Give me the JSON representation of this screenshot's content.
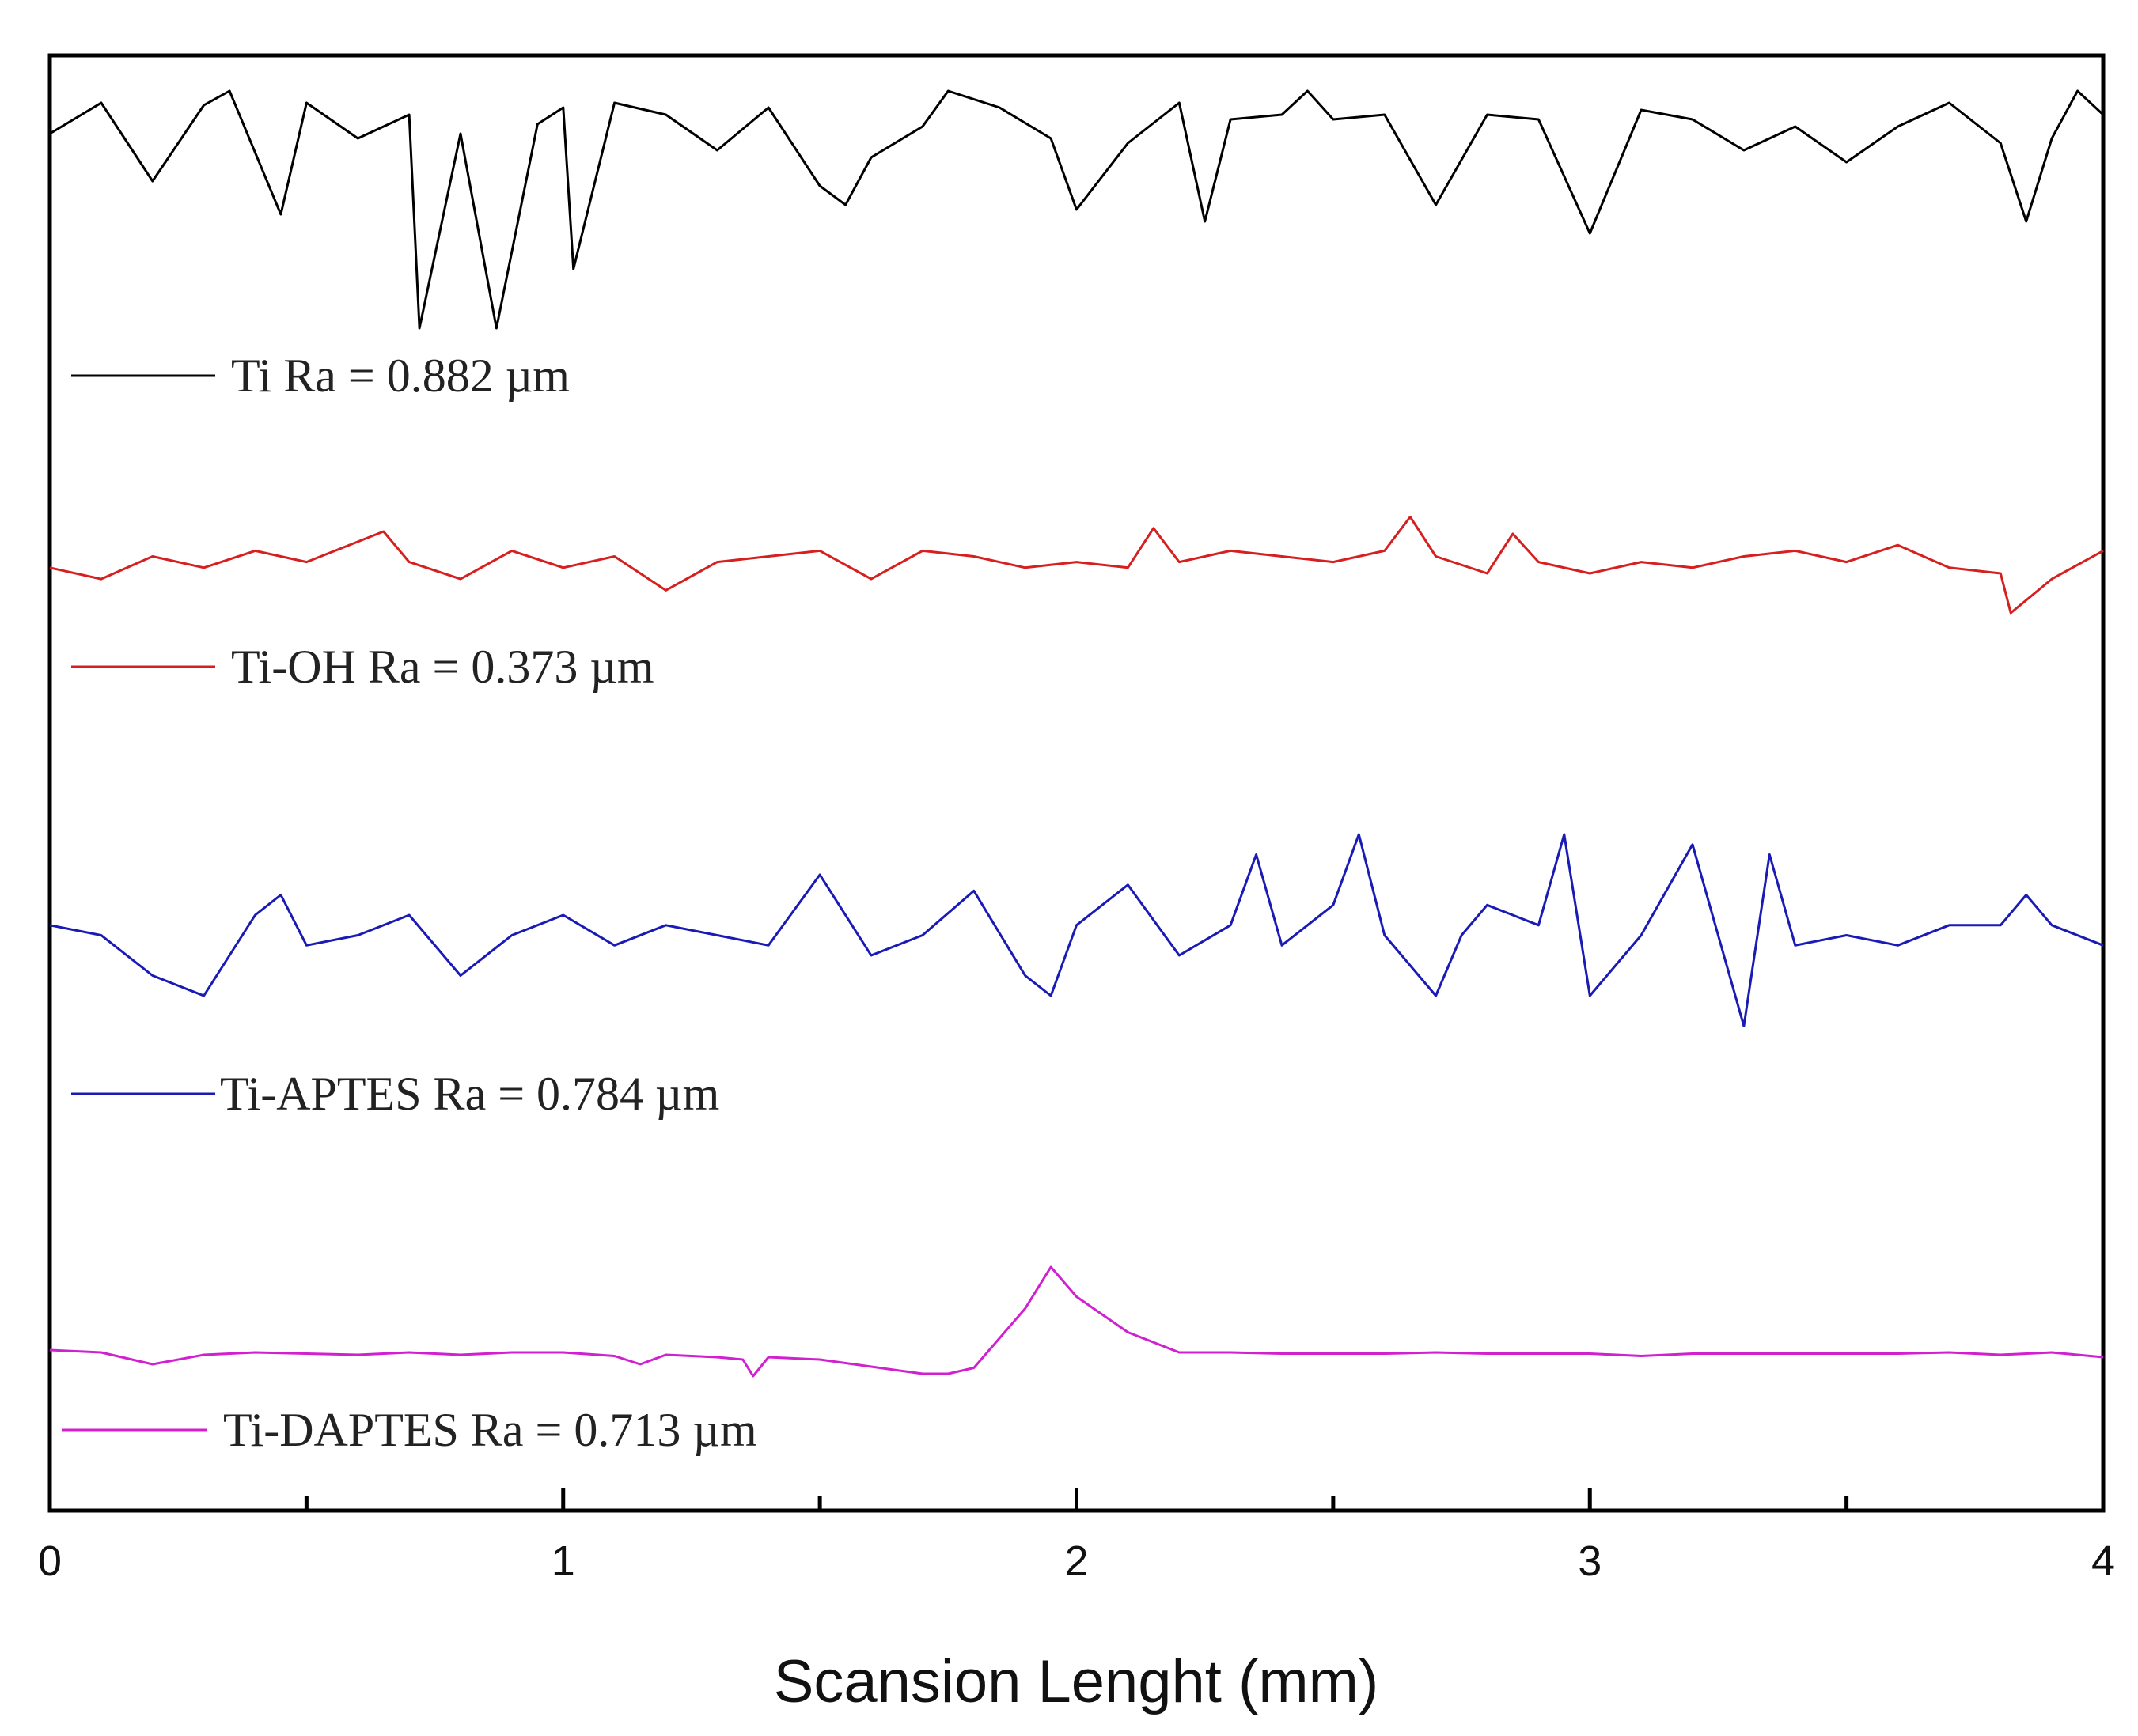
{
  "chart_data": {
    "type": "line",
    "xlabel": "Scansion Lenght (mm)",
    "ylabel": "",
    "xlim": [
      0,
      4
    ],
    "x_ticks": [
      "0",
      "1",
      "2",
      "3",
      "4"
    ],
    "grid": false,
    "legend_placement": "below each trace",
    "series": [
      {
        "name": "Ti Ra = 0.882 µm",
        "color": "#000000",
        "x": [
          0,
          0.1,
          0.2,
          0.3,
          0.35,
          0.45,
          0.5,
          0.6,
          0.7,
          0.72,
          0.8,
          0.87,
          0.95,
          1.0,
          1.02,
          1.1,
          1.2,
          1.3,
          1.4,
          1.5,
          1.55,
          1.6,
          1.7,
          1.75,
          1.85,
          1.95,
          2.0,
          2.1,
          2.2,
          2.25,
          2.3,
          2.4,
          2.45,
          2.5,
          2.6,
          2.7,
          2.8,
          2.9,
          3.0,
          3.1,
          3.2,
          3.3,
          3.4,
          3.5,
          3.6,
          3.7,
          3.8,
          3.85,
          3.9,
          3.95,
          4.0
        ],
        "y": [
          0.82,
          0.95,
          0.62,
          0.94,
          1.0,
          0.48,
          0.95,
          0.8,
          0.9,
          0.0,
          0.82,
          0.0,
          0.86,
          0.93,
          0.25,
          0.95,
          0.9,
          0.75,
          0.93,
          0.6,
          0.52,
          0.72,
          0.85,
          1.0,
          0.93,
          0.8,
          0.5,
          0.78,
          0.95,
          0.45,
          0.88,
          0.9,
          1.0,
          0.88,
          0.9,
          0.52,
          0.9,
          0.88,
          0.4,
          0.92,
          0.88,
          0.75,
          0.85,
          0.7,
          0.85,
          0.95,
          0.78,
          0.45,
          0.8,
          1.0,
          0.9
        ]
      },
      {
        "name": "Ti-OH Ra = 0.373 µm",
        "color": "#d62020",
        "x": [
          0,
          0.1,
          0.2,
          0.3,
          0.4,
          0.5,
          0.65,
          0.7,
          0.8,
          0.9,
          1.0,
          1.1,
          1.2,
          1.3,
          1.4,
          1.5,
          1.6,
          1.7,
          1.8,
          1.9,
          2.0,
          2.1,
          2.15,
          2.2,
          2.3,
          2.4,
          2.5,
          2.6,
          2.65,
          2.7,
          2.8,
          2.85,
          2.9,
          3.0,
          3.1,
          3.2,
          3.3,
          3.4,
          3.5,
          3.6,
          3.7,
          3.8,
          3.82,
          3.9,
          4.0
        ],
        "y": [
          0.4,
          0.3,
          0.5,
          0.4,
          0.55,
          0.45,
          0.72,
          0.45,
          0.3,
          0.55,
          0.4,
          0.5,
          0.2,
          0.45,
          0.5,
          0.55,
          0.3,
          0.55,
          0.5,
          0.4,
          0.45,
          0.4,
          0.75,
          0.45,
          0.55,
          0.5,
          0.45,
          0.55,
          0.85,
          0.5,
          0.35,
          0.7,
          0.45,
          0.35,
          0.45,
          0.4,
          0.5,
          0.55,
          0.45,
          0.6,
          0.4,
          0.35,
          0.0,
          0.3,
          0.55
        ]
      },
      {
        "name": "Ti-APTES Ra = 0.784 µm",
        "color": "#1a1ab5",
        "x": [
          0,
          0.1,
          0.2,
          0.3,
          0.4,
          0.45,
          0.5,
          0.6,
          0.7,
          0.8,
          0.9,
          1.0,
          1.1,
          1.2,
          1.3,
          1.4,
          1.5,
          1.6,
          1.7,
          1.8,
          1.9,
          1.95,
          2.0,
          2.1,
          2.2,
          2.3,
          2.35,
          2.4,
          2.5,
          2.55,
          2.6,
          2.7,
          2.75,
          2.8,
          2.9,
          2.95,
          3.0,
          3.1,
          3.2,
          3.25,
          3.3,
          3.35,
          3.4,
          3.5,
          3.6,
          3.7,
          3.8,
          3.85,
          3.9,
          4.0
        ],
        "y": [
          0.55,
          0.5,
          0.3,
          0.2,
          0.6,
          0.7,
          0.45,
          0.5,
          0.6,
          0.3,
          0.5,
          0.6,
          0.45,
          0.55,
          0.5,
          0.45,
          0.8,
          0.4,
          0.5,
          0.72,
          0.3,
          0.2,
          0.55,
          0.75,
          0.4,
          0.55,
          0.9,
          0.45,
          0.65,
          1.0,
          0.5,
          0.2,
          0.5,
          0.65,
          0.55,
          1.0,
          0.2,
          0.5,
          0.95,
          0.5,
          0.05,
          0.9,
          0.45,
          0.5,
          0.45,
          0.55,
          0.55,
          0.7,
          0.55,
          0.45
        ]
      },
      {
        "name": "Ti-DAPTES Ra = 0.713 µm",
        "color": "#d020d0",
        "x": [
          0,
          0.1,
          0.2,
          0.3,
          0.4,
          0.5,
          0.6,
          0.7,
          0.8,
          0.9,
          1.0,
          1.1,
          1.15,
          1.2,
          1.3,
          1.35,
          1.37,
          1.4,
          1.5,
          1.6,
          1.7,
          1.75,
          1.8,
          1.9,
          1.95,
          2.0,
          2.05,
          2.1,
          2.2,
          2.3,
          2.4,
          2.5,
          2.6,
          2.7,
          2.8,
          2.9,
          3.0,
          3.1,
          3.2,
          3.3,
          3.4,
          3.5,
          3.6,
          3.7,
          3.8,
          3.9,
          4.0
        ],
        "y": [
          0.3,
          0.28,
          0.18,
          0.26,
          0.28,
          0.27,
          0.26,
          0.28,
          0.26,
          0.28,
          0.28,
          0.25,
          0.18,
          0.26,
          0.24,
          0.22,
          0.08,
          0.24,
          0.22,
          0.16,
          0.1,
          0.1,
          0.15,
          0.65,
          1.0,
          0.75,
          0.6,
          0.45,
          0.28,
          0.28,
          0.27,
          0.27,
          0.27,
          0.28,
          0.27,
          0.27,
          0.27,
          0.25,
          0.27,
          0.27,
          0.27,
          0.27,
          0.27,
          0.28,
          0.26,
          0.28,
          0.24
        ]
      }
    ]
  }
}
